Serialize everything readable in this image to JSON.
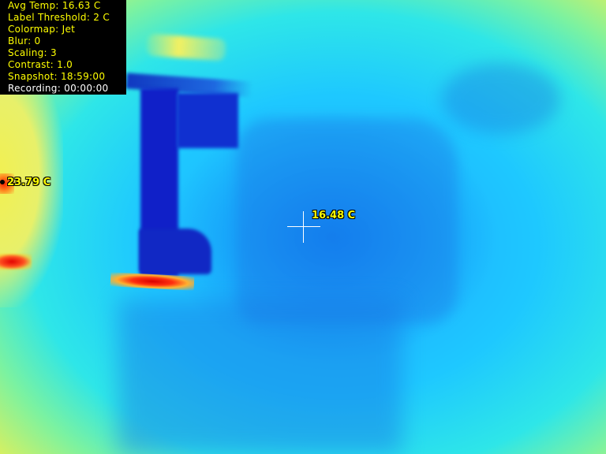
{
  "overlay": {
    "lines": [
      "Avg Temp: 16.63 C",
      "Label Threshold: 2 C",
      "Colormap: Jet",
      "Blur: 0",
      "Scaling: 3",
      "Contrast: 1.0",
      "Snapshot: 18:59:00",
      "Recording: 00:00:00"
    ],
    "text_color_active": "#ffff00",
    "text_color_recording": "#ffffff"
  },
  "readouts": {
    "max_point": "23.79 C",
    "center_point": "16.48 C",
    "label_color": "#ffff00"
  },
  "colormap": "Jet"
}
